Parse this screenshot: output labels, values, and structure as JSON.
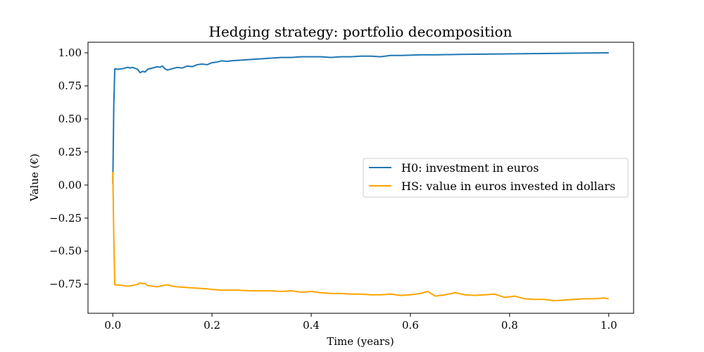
{
  "chart_data": {
    "type": "line",
    "title": "Hedging strategy: portfolio decomposition",
    "xlabel": "Time (years)",
    "ylabel": "Value (€)",
    "xlim": [
      -0.05,
      1.05
    ],
    "ylim": [
      -0.97,
      1.08
    ],
    "x_ticks": [
      0.0,
      0.2,
      0.4,
      0.6,
      0.8,
      1.0
    ],
    "x_tick_labels": [
      "0.0",
      "0.2",
      "0.4",
      "0.6",
      "0.8",
      "1.0"
    ],
    "y_ticks": [
      1.0,
      0.75,
      0.5,
      0.25,
      0.0,
      -0.25,
      -0.5,
      -0.75
    ],
    "y_tick_labels": [
      "1.00",
      "0.75",
      "0.50",
      "0.25",
      "0.00",
      "−0.25",
      "−0.50",
      "−0.75"
    ],
    "grid": false,
    "legend_position": "center-right",
    "series": [
      {
        "name": "H0: investment in euros",
        "color": "#1f77b4",
        "points": [
          [
            0.0,
            0.01
          ],
          [
            0.002,
            0.6
          ],
          [
            0.004,
            0.88
          ],
          [
            0.01,
            0.875
          ],
          [
            0.02,
            0.88
          ],
          [
            0.03,
            0.89
          ],
          [
            0.035,
            0.885
          ],
          [
            0.04,
            0.89
          ],
          [
            0.05,
            0.875
          ],
          [
            0.055,
            0.85
          ],
          [
            0.06,
            0.86
          ],
          [
            0.065,
            0.855
          ],
          [
            0.07,
            0.875
          ],
          [
            0.08,
            0.885
          ],
          [
            0.09,
            0.895
          ],
          [
            0.095,
            0.89
          ],
          [
            0.1,
            0.9
          ],
          [
            0.105,
            0.88
          ],
          [
            0.11,
            0.87
          ],
          [
            0.12,
            0.88
          ],
          [
            0.13,
            0.89
          ],
          [
            0.14,
            0.885
          ],
          [
            0.15,
            0.9
          ],
          [
            0.16,
            0.895
          ],
          [
            0.17,
            0.91
          ],
          [
            0.18,
            0.915
          ],
          [
            0.19,
            0.91
          ],
          [
            0.2,
            0.925
          ],
          [
            0.21,
            0.93
          ],
          [
            0.22,
            0.94
          ],
          [
            0.23,
            0.935
          ],
          [
            0.24,
            0.94
          ],
          [
            0.26,
            0.945
          ],
          [
            0.28,
            0.95
          ],
          [
            0.3,
            0.955
          ],
          [
            0.32,
            0.96
          ],
          [
            0.34,
            0.965
          ],
          [
            0.36,
            0.965
          ],
          [
            0.38,
            0.97
          ],
          [
            0.4,
            0.97
          ],
          [
            0.42,
            0.97
          ],
          [
            0.44,
            0.965
          ],
          [
            0.46,
            0.97
          ],
          [
            0.48,
            0.97
          ],
          [
            0.5,
            0.975
          ],
          [
            0.52,
            0.975
          ],
          [
            0.54,
            0.97
          ],
          [
            0.56,
            0.98
          ],
          [
            0.58,
            0.98
          ],
          [
            0.6,
            0.982
          ],
          [
            0.62,
            0.985
          ],
          [
            0.65,
            0.985
          ],
          [
            0.7,
            0.988
          ],
          [
            0.75,
            0.99
          ],
          [
            0.8,
            0.992
          ],
          [
            0.85,
            0.994
          ],
          [
            0.9,
            0.996
          ],
          [
            0.95,
            0.998
          ],
          [
            1.0,
            1.0
          ]
        ]
      },
      {
        "name": "HS: value in euros invested in dollars",
        "color": "#ffa500",
        "points": [
          [
            0.0,
            0.1
          ],
          [
            0.002,
            -0.4
          ],
          [
            0.004,
            -0.755
          ],
          [
            0.01,
            -0.755
          ],
          [
            0.02,
            -0.76
          ],
          [
            0.03,
            -0.765
          ],
          [
            0.04,
            -0.76
          ],
          [
            0.05,
            -0.75
          ],
          [
            0.055,
            -0.74
          ],
          [
            0.06,
            -0.745
          ],
          [
            0.065,
            -0.745
          ],
          [
            0.07,
            -0.76
          ],
          [
            0.08,
            -0.765
          ],
          [
            0.09,
            -0.77
          ],
          [
            0.1,
            -0.76
          ],
          [
            0.11,
            -0.755
          ],
          [
            0.12,
            -0.765
          ],
          [
            0.13,
            -0.77
          ],
          [
            0.15,
            -0.775
          ],
          [
            0.17,
            -0.78
          ],
          [
            0.19,
            -0.785
          ],
          [
            0.2,
            -0.79
          ],
          [
            0.22,
            -0.795
          ],
          [
            0.25,
            -0.795
          ],
          [
            0.28,
            -0.8
          ],
          [
            0.3,
            -0.8
          ],
          [
            0.32,
            -0.8
          ],
          [
            0.34,
            -0.805
          ],
          [
            0.36,
            -0.8
          ],
          [
            0.38,
            -0.81
          ],
          [
            0.4,
            -0.805
          ],
          [
            0.42,
            -0.815
          ],
          [
            0.44,
            -0.82
          ],
          [
            0.46,
            -0.82
          ],
          [
            0.48,
            -0.825
          ],
          [
            0.5,
            -0.825
          ],
          [
            0.52,
            -0.83
          ],
          [
            0.54,
            -0.83
          ],
          [
            0.56,
            -0.825
          ],
          [
            0.58,
            -0.835
          ],
          [
            0.6,
            -0.83
          ],
          [
            0.62,
            -0.82
          ],
          [
            0.635,
            -0.805
          ],
          [
            0.65,
            -0.84
          ],
          [
            0.67,
            -0.83
          ],
          [
            0.69,
            -0.815
          ],
          [
            0.71,
            -0.83
          ],
          [
            0.73,
            -0.835
          ],
          [
            0.75,
            -0.83
          ],
          [
            0.77,
            -0.825
          ],
          [
            0.79,
            -0.85
          ],
          [
            0.81,
            -0.84
          ],
          [
            0.83,
            -0.86
          ],
          [
            0.85,
            -0.865
          ],
          [
            0.87,
            -0.865
          ],
          [
            0.89,
            -0.875
          ],
          [
            0.91,
            -0.87
          ],
          [
            0.93,
            -0.865
          ],
          [
            0.95,
            -0.86
          ],
          [
            0.97,
            -0.86
          ],
          [
            0.99,
            -0.855
          ],
          [
            1.0,
            -0.86
          ]
        ]
      }
    ]
  }
}
